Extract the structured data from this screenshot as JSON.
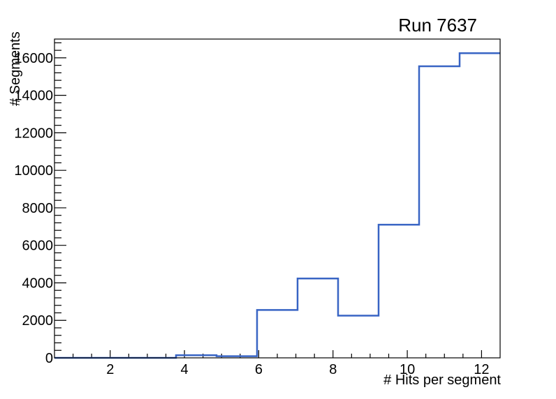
{
  "title": "Run 7637",
  "colors": {
    "background": "#ffffff",
    "axis": "#000000",
    "histogram_line": "#3864c4"
  },
  "chart_data": {
    "type": "line",
    "subtype": "step-histogram",
    "title": "Run 7637",
    "xlabel": "# Hits per segment",
    "ylabel": "# Segments",
    "xlim": [
      0.5,
      12.5
    ],
    "ylim": [
      0,
      17000
    ],
    "n_bins": 11,
    "bin_edges": [
      0.5,
      1.591,
      2.682,
      3.773,
      4.864,
      5.955,
      7.045,
      8.136,
      9.227,
      10.318,
      11.409,
      12.5
    ],
    "counts": [
      0,
      0,
      0,
      140,
      90,
      2550,
      4230,
      2250,
      7100,
      15550,
      16250
    ],
    "x_major_ticks": [
      2,
      4,
      6,
      8,
      10,
      12
    ],
    "x_minor_step": 0.5,
    "y_major_ticks": [
      0,
      2000,
      4000,
      6000,
      8000,
      10000,
      12000,
      14000,
      16000
    ],
    "y_minor_step": 400,
    "grid": false,
    "legend": false,
    "line_color": "#3864c4",
    "line_width": 2.5
  }
}
